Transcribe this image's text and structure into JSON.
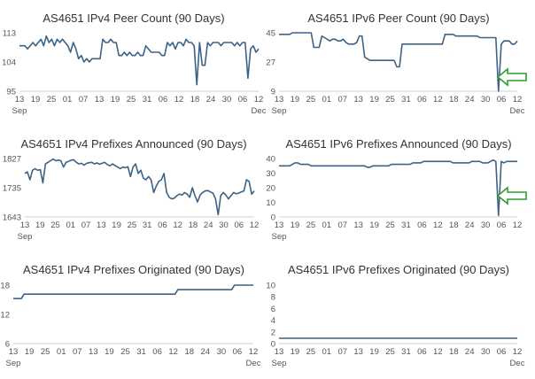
{
  "chart_data": [
    {
      "type": "line",
      "title": "AS4651 IPv4 Peer Count (90 Days)",
      "ylim": [
        95,
        113
      ],
      "yticks": [
        "113",
        "104",
        "95"
      ],
      "xticks": [
        "13",
        "19",
        "25",
        "01",
        "07",
        "13",
        "19",
        "25",
        "31",
        "06",
        "12",
        "18",
        "24",
        "30",
        "06",
        "12"
      ],
      "xsubs": [
        "Sep",
        "Dec"
      ],
      "x": [
        0,
        1,
        2,
        3,
        4,
        5,
        6,
        7,
        8,
        9,
        10,
        11,
        12,
        13,
        14,
        15,
        16,
        17,
        18,
        19,
        20,
        21,
        22,
        23,
        24,
        25,
        26,
        27,
        28,
        29,
        30,
        31,
        32,
        33,
        34,
        35,
        36,
        37,
        38,
        39,
        40,
        41,
        42,
        43,
        44,
        45,
        46,
        47,
        48,
        49,
        50,
        51,
        52,
        53,
        54,
        55,
        56,
        57,
        58,
        59,
        60,
        61,
        62,
        63,
        64,
        65,
        66,
        67,
        68,
        69,
        70,
        71,
        72,
        73,
        74,
        75,
        76,
        77,
        78,
        79,
        80,
        81,
        82,
        83,
        84,
        85,
        86,
        87,
        88,
        89
      ],
      "values": [
        109,
        109,
        109,
        108,
        109,
        110,
        109,
        110,
        111,
        109,
        112,
        110,
        111,
        109,
        111,
        110,
        111,
        110,
        109,
        107,
        110,
        108,
        105,
        106,
        104,
        105,
        104,
        105,
        105,
        105,
        105,
        111,
        110,
        110,
        111,
        110,
        110,
        106,
        106,
        107,
        106,
        107,
        106,
        106,
        107,
        106,
        106,
        109,
        108,
        107,
        107,
        107,
        107,
        106,
        106,
        110,
        109,
        110,
        108,
        110,
        110,
        109,
        111,
        110,
        110,
        109,
        97,
        110,
        103,
        103,
        110,
        109,
        110,
        110,
        110,
        109,
        110,
        110,
        110,
        110,
        109,
        110,
        109,
        110,
        110,
        99,
        108,
        109,
        107,
        108
      ]
    },
    {
      "type": "line",
      "title": "AS4651 IPv6 Peer Count (90 Days)",
      "ylim": [
        9,
        45
      ],
      "yticks": [
        "45",
        "27",
        "9"
      ],
      "xticks": [
        "13",
        "19",
        "25",
        "01",
        "07",
        "13",
        "19",
        "25",
        "31",
        "06",
        "12",
        "18",
        "24",
        "30",
        "06",
        "12"
      ],
      "xsubs": [
        "Sep",
        "Dec"
      ],
      "x": [
        0,
        1,
        2,
        3,
        4,
        5,
        6,
        7,
        8,
        9,
        10,
        11,
        12,
        13,
        14,
        15,
        16,
        17,
        18,
        19,
        20,
        21,
        22,
        23,
        24,
        25,
        26,
        27,
        28,
        29,
        30,
        31,
        32,
        33,
        34,
        35,
        36,
        37,
        38,
        39,
        40,
        41,
        42,
        43,
        44,
        45,
        46,
        47,
        48,
        49,
        50,
        51,
        52,
        53,
        54,
        55,
        56,
        57,
        58,
        59,
        60,
        61,
        62,
        63,
        64,
        65,
        66,
        67,
        68,
        69,
        70,
        71,
        72,
        73,
        74,
        75,
        76,
        77,
        78,
        79,
        80,
        81,
        82,
        83,
        84,
        85,
        86,
        87,
        88,
        89
      ],
      "values": [
        44,
        44,
        44,
        44,
        44,
        45,
        45,
        45,
        45,
        45,
        45,
        45,
        45,
        36,
        36,
        36,
        43,
        42,
        41,
        40,
        41,
        41,
        40,
        40,
        41,
        39,
        38,
        38,
        38,
        39,
        43,
        43,
        30,
        29,
        28,
        28,
        28,
        28,
        28,
        28,
        28,
        28,
        28,
        28,
        24,
        24,
        38,
        38,
        38,
        38,
        38,
        38,
        38,
        38,
        38,
        38,
        38,
        38,
        38,
        38,
        38,
        38,
        44,
        44,
        44,
        44,
        43,
        43,
        43,
        43,
        43,
        43,
        43,
        43,
        43,
        42,
        42,
        42,
        42,
        42,
        42,
        42,
        9,
        38,
        40,
        40,
        40,
        38,
        38,
        40
      ]
    },
    {
      "type": "line",
      "title": "AS4651 IPv4 Prefixes Announced (90 Days)",
      "ylim": [
        1643,
        1827
      ],
      "yticks": [
        "1827",
        "1735",
        "1643"
      ],
      "xticks": [
        "13",
        "19",
        "25",
        "01",
        "07",
        "13",
        "19",
        "25",
        "31",
        "06",
        "12",
        "18",
        "24",
        "30",
        "06",
        "12"
      ],
      "xsubs": [
        "Sep",
        ""
      ],
      "x": [
        0,
        1,
        2,
        3,
        4,
        5,
        6,
        7,
        8,
        9,
        10,
        11,
        12,
        13,
        14,
        15,
        16,
        17,
        18,
        19,
        20,
        21,
        22,
        23,
        24,
        25,
        26,
        27,
        28,
        29,
        30,
        31,
        32,
        33,
        34,
        35,
        36,
        37,
        38,
        39,
        40,
        41,
        42,
        43,
        44,
        45,
        46,
        47,
        48,
        49,
        50,
        51,
        52,
        53,
        54,
        55,
        56,
        57,
        58,
        59,
        60,
        61,
        62,
        63,
        64,
        65,
        66,
        67,
        68,
        69,
        70,
        71,
        72,
        73,
        74,
        75,
        76,
        77,
        78,
        79,
        80,
        81,
        82,
        83,
        84,
        85,
        86,
        87,
        88,
        89
      ],
      "values": [
        1780,
        1785,
        1760,
        1790,
        1795,
        1790,
        1792,
        1750,
        1810,
        1815,
        1820,
        1825,
        1820,
        1822,
        1820,
        1800,
        1815,
        1818,
        1822,
        1823,
        1815,
        1810,
        1812,
        1806,
        1812,
        1814,
        1815,
        1810,
        1813,
        1809,
        1812,
        1815,
        1808,
        1804,
        1810,
        1805,
        1800,
        1795,
        1800,
        1798,
        1801,
        1770,
        1800,
        1810,
        1780,
        1790,
        1765,
        1760,
        1770,
        1760,
        1720,
        1740,
        1755,
        1760,
        1780,
        1720,
        1705,
        1700,
        1702,
        1710,
        1715,
        1712,
        1720,
        1715,
        1705,
        1735,
        1710,
        1690,
        1712,
        1720,
        1725,
        1726,
        1722,
        1718,
        1700,
        1650,
        1710,
        1720,
        1712,
        1700,
        1710,
        1720,
        1716,
        1718,
        1722,
        1725,
        1760,
        1755,
        1715,
        1725
      ]
    },
    {
      "type": "line",
      "title": "AS4651 IPv6 Prefixes Announced (90 Days)",
      "ylim": [
        0,
        40
      ],
      "yticks": [
        "40",
        "30",
        "20",
        "10",
        "0"
      ],
      "xticks": [
        "13",
        "19",
        "25",
        "01",
        "07",
        "13",
        "19",
        "25",
        "31",
        "06",
        "12",
        "18",
        "24",
        "30",
        "06",
        "12"
      ],
      "xsubs": [
        "Sep",
        ""
      ],
      "x": [
        0,
        1,
        2,
        3,
        4,
        5,
        6,
        7,
        8,
        9,
        10,
        11,
        12,
        13,
        14,
        15,
        16,
        17,
        18,
        19,
        20,
        21,
        22,
        23,
        24,
        25,
        26,
        27,
        28,
        29,
        30,
        31,
        32,
        33,
        34,
        35,
        36,
        37,
        38,
        39,
        40,
        41,
        42,
        43,
        44,
        45,
        46,
        47,
        48,
        49,
        50,
        51,
        52,
        53,
        54,
        55,
        56,
        57,
        58,
        59,
        60,
        61,
        62,
        63,
        64,
        65,
        66,
        67,
        68,
        69,
        70,
        71,
        72,
        73,
        74,
        75,
        76,
        77,
        78,
        79,
        80,
        81,
        82,
        83,
        84,
        85,
        86,
        87,
        88,
        89
      ],
      "values": [
        35,
        35,
        35,
        35,
        35,
        36,
        37,
        37,
        36,
        36,
        36,
        36,
        35,
        35,
        35,
        35,
        35,
        35,
        35,
        35,
        35,
        35,
        35,
        35,
        35,
        35,
        35,
        35,
        35,
        35,
        35,
        35,
        35,
        34,
        34,
        35,
        35,
        35,
        35,
        35,
        35,
        35,
        36,
        36,
        36,
        36,
        36,
        36,
        36,
        36,
        37,
        37,
        37,
        37,
        38,
        38,
        38,
        38,
        38,
        38,
        38,
        38,
        38,
        38,
        38,
        37,
        37,
        37,
        37,
        37,
        37,
        37,
        38,
        38,
        38,
        38,
        37,
        37,
        37,
        38,
        39,
        38,
        1,
        38,
        37,
        38,
        38,
        38,
        38,
        38
      ]
    },
    {
      "type": "line",
      "title": "AS4651 IPv4 Prefixes Originated (90 Days)",
      "ylim": [
        6,
        19
      ],
      "yticks": [
        "18",
        "12",
        "6"
      ],
      "xticks": [
        "13",
        "19",
        "25",
        "01",
        "07",
        "13",
        "19",
        "25",
        "31",
        "06",
        "12",
        "18",
        "24",
        "30",
        "06",
        "12"
      ],
      "xsubs": [
        "Sep",
        "Dec"
      ],
      "x": [
        0,
        3,
        4,
        10,
        11,
        60,
        61,
        81,
        82,
        89
      ],
      "values": [
        16,
        16,
        17,
        17,
        17,
        17,
        18,
        18,
        19,
        19
      ]
    },
    {
      "type": "line",
      "title": "AS4651 IPv6 Prefixes Originated (90 Days)",
      "ylim": [
        0,
        11
      ],
      "yticks": [
        "10",
        "8",
        "6",
        "4",
        "2",
        "0"
      ],
      "xticks": [
        "13",
        "19",
        "25",
        "01",
        "07",
        "13",
        "19",
        "25",
        "31",
        "06",
        "12",
        "18",
        "24",
        "30",
        "06",
        "12"
      ],
      "xsubs": [
        "Sep",
        "Dec"
      ],
      "x": [
        0,
        89
      ],
      "values": [
        1,
        1
      ]
    }
  ],
  "arrow_color": "#2e9e2e",
  "line_color": "#3d6286"
}
